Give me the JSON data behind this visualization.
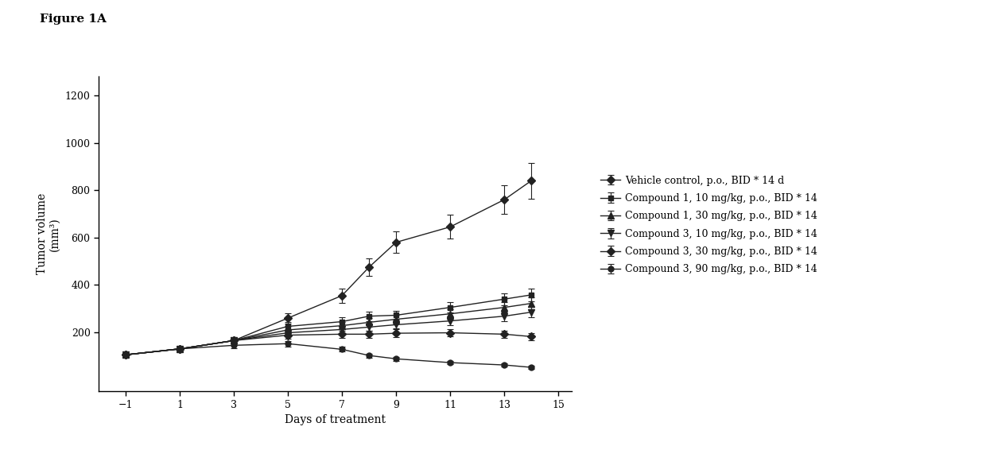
{
  "figure_label": "Figure 1A",
  "xlabel": "Days of treatment",
  "ylabel": "Tumor volume\n(mm³)",
  "xlim": [
    -2,
    15.5
  ],
  "ylim": [
    -50,
    1280
  ],
  "xticks": [
    -1,
    1,
    3,
    5,
    7,
    9,
    11,
    13,
    15
  ],
  "yticks": [
    200,
    400,
    600,
    800,
    1000,
    1200
  ],
  "series": [
    {
      "label": "Vehicle control, p.o., BID * 14 d",
      "x": [
        -1,
        1,
        3,
        5,
        7,
        8,
        9,
        11,
        13,
        14
      ],
      "y": [
        105,
        130,
        165,
        260,
        355,
        475,
        580,
        645,
        760,
        840
      ],
      "yerr": [
        8,
        10,
        12,
        22,
        30,
        38,
        45,
        50,
        60,
        75
      ],
      "marker": "D",
      "markersize": 5
    },
    {
      "label": "Compound 1, 10 mg/kg, p.o., BID * 14",
      "x": [
        -1,
        1,
        3,
        5,
        7,
        8,
        9,
        11,
        13,
        14
      ],
      "y": [
        105,
        130,
        165,
        225,
        245,
        268,
        272,
        305,
        340,
        358
      ],
      "yerr": [
        8,
        10,
        12,
        18,
        18,
        20,
        20,
        22,
        25,
        28
      ],
      "marker": "s",
      "markersize": 5
    },
    {
      "label": "Compound 1, 30 mg/kg, p.o., BID * 14",
      "x": [
        -1,
        1,
        3,
        5,
        7,
        8,
        9,
        11,
        13,
        14
      ],
      "y": [
        105,
        130,
        165,
        210,
        228,
        242,
        255,
        278,
        305,
        322
      ],
      "yerr": [
        8,
        10,
        12,
        16,
        16,
        18,
        18,
        20,
        22,
        25
      ],
      "marker": "^",
      "markersize": 6
    },
    {
      "label": "Compound 3, 10 mg/kg, p.o., BID * 14",
      "x": [
        -1,
        1,
        3,
        5,
        7,
        8,
        9,
        11,
        13,
        14
      ],
      "y": [
        105,
        130,
        165,
        198,
        212,
        222,
        232,
        248,
        268,
        285
      ],
      "yerr": [
        8,
        10,
        12,
        15,
        15,
        15,
        17,
        18,
        20,
        22
      ],
      "marker": "v",
      "markersize": 6
    },
    {
      "label": "Compound 3, 30 mg/kg, p.o., BID * 14",
      "x": [
        -1,
        1,
        3,
        5,
        7,
        8,
        9,
        11,
        13,
        14
      ],
      "y": [
        105,
        130,
        165,
        188,
        192,
        192,
        196,
        198,
        192,
        182
      ],
      "yerr": [
        8,
        10,
        12,
        14,
        14,
        14,
        16,
        16,
        16,
        16
      ],
      "marker": "D",
      "markersize": 5
    },
    {
      "label": "Compound 3, 90 mg/kg, p.o., BID * 14",
      "x": [
        -1,
        1,
        3,
        5,
        7,
        8,
        9,
        11,
        13,
        14
      ],
      "y": [
        105,
        130,
        145,
        152,
        128,
        102,
        88,
        72,
        62,
        52
      ],
      "yerr": [
        8,
        10,
        12,
        12,
        10,
        8,
        8,
        7,
        7,
        7
      ],
      "marker": "o",
      "markersize": 5
    }
  ],
  "color": "#222222",
  "background_color": "#ffffff",
  "figure_label_fontsize": 11,
  "axis_label_fontsize": 10,
  "tick_fontsize": 9,
  "legend_fontsize": 9
}
